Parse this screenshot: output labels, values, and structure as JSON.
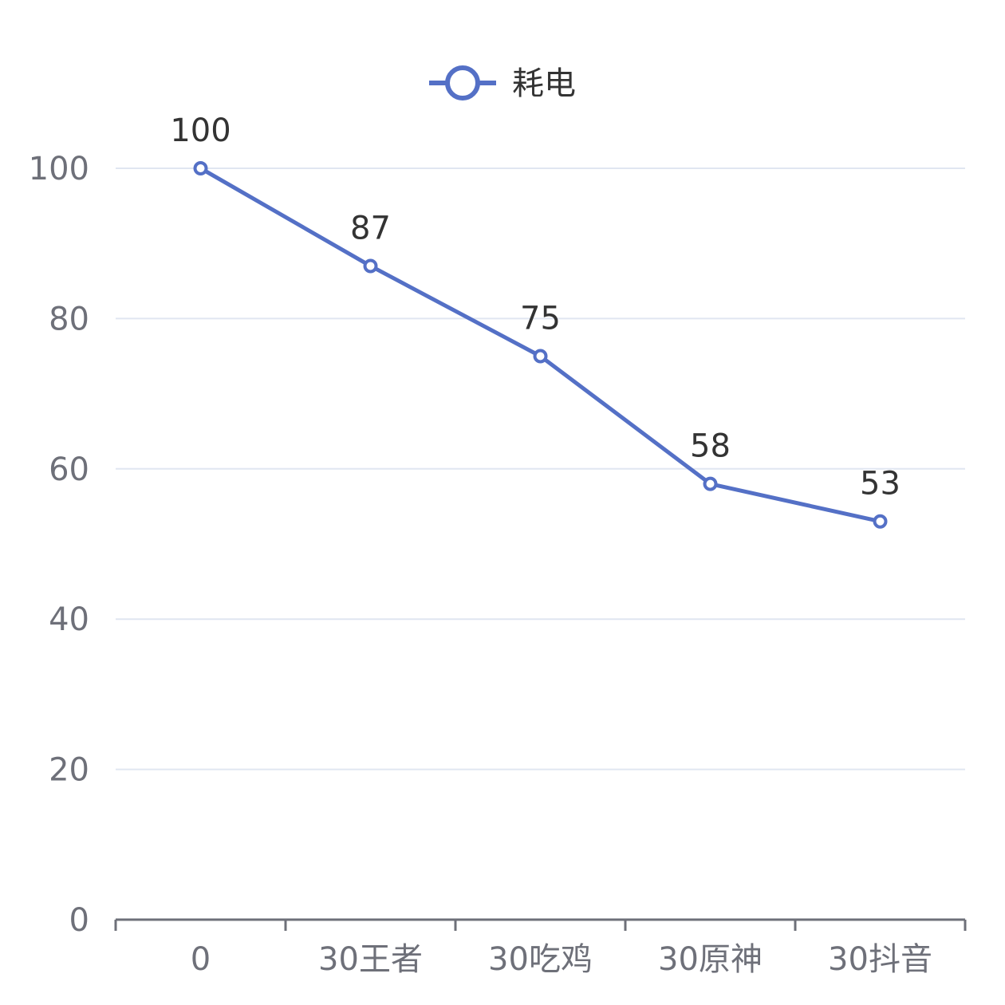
{
  "chart_data": {
    "type": "line",
    "title": "",
    "xlabel": "",
    "ylabel": "",
    "categories": [
      "0",
      "30王者",
      "30吃鸡",
      "30原神",
      "30抖音"
    ],
    "series": [
      {
        "name": "耗电",
        "values": [
          100,
          87,
          75,
          58,
          53
        ],
        "color": "#5470c6"
      }
    ],
    "ylim": [
      0,
      100
    ],
    "yticks": [
      0,
      20,
      40,
      60,
      80,
      100
    ],
    "grid": true,
    "legend": "top-center",
    "data_labels": true,
    "colors": {
      "grid": "#e0e6f1",
      "axis": "#6e7079",
      "label": "#333333"
    }
  }
}
